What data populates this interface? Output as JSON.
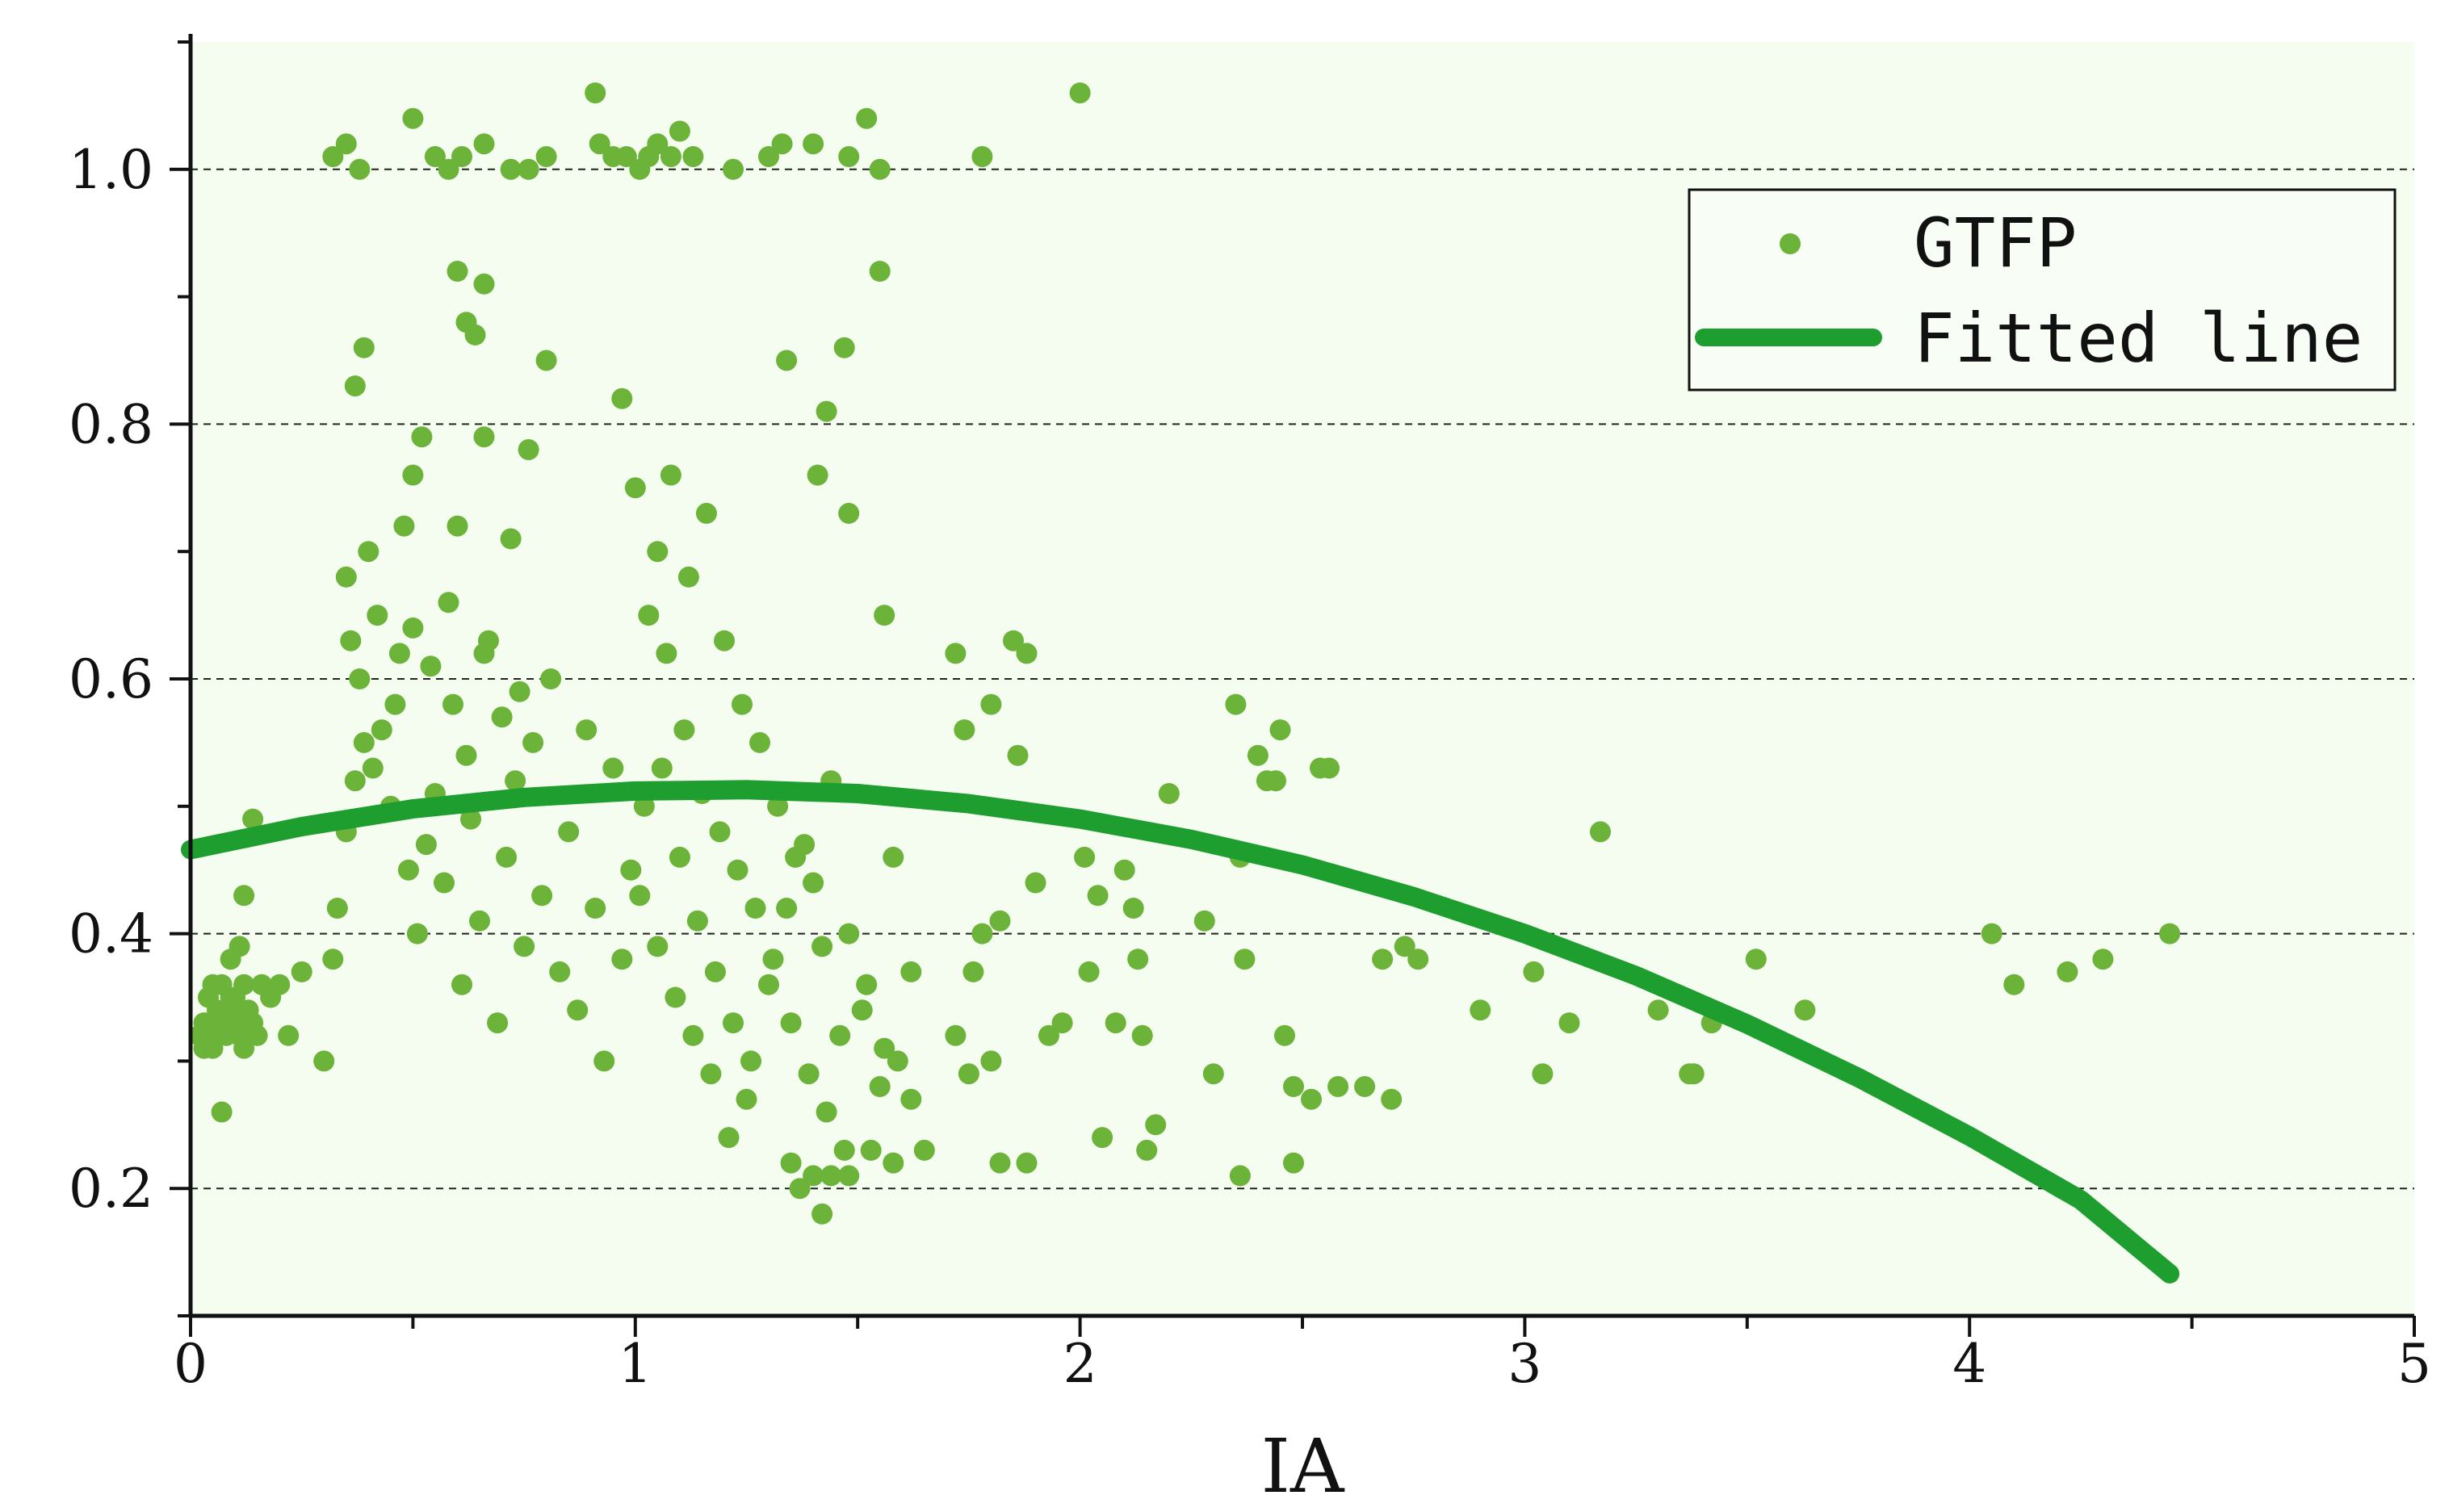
{
  "chart_data": {
    "type": "scatter",
    "xlabel": "IA",
    "ylabel": "",
    "xlim": [
      0,
      5
    ],
    "ylim": [
      0.1,
      1.1
    ],
    "x_ticks": [
      0,
      1,
      2,
      3,
      4,
      5
    ],
    "x_tick_labels": [
      "0",
      "1",
      "2",
      "3",
      "4",
      "5"
    ],
    "y_ticks": [
      0.2,
      0.4,
      0.6,
      0.8,
      1.0
    ],
    "y_tick_labels": [
      "0.2",
      "0.4",
      "0.6",
      "0.8",
      "1.0"
    ],
    "grid": "horizontal dashed",
    "legend_position": "top-right",
    "colors": {
      "points": "#6cb33a",
      "line": "#1e9e2f",
      "background": "#f5fcf0"
    },
    "series": [
      {
        "name": "GTFP",
        "kind": "scatter",
        "points": [
          [
            0.02,
            0.32
          ],
          [
            0.03,
            0.33
          ],
          [
            0.04,
            0.35
          ],
          [
            0.05,
            0.31
          ],
          [
            0.06,
            0.34
          ],
          [
            0.07,
            0.36
          ],
          [
            0.08,
            0.32
          ],
          [
            0.09,
            0.33
          ],
          [
            0.1,
            0.35
          ],
          [
            0.11,
            0.34
          ],
          [
            0.12,
            0.31
          ],
          [
            0.04,
            0.33
          ],
          [
            0.06,
            0.32
          ],
          [
            0.08,
            0.34
          ],
          [
            0.1,
            0.33
          ],
          [
            0.12,
            0.36
          ],
          [
            0.03,
            0.31
          ],
          [
            0.05,
            0.36
          ],
          [
            0.07,
            0.33
          ],
          [
            0.09,
            0.35
          ],
          [
            0.11,
            0.32
          ],
          [
            0.13,
            0.34
          ],
          [
            0.14,
            0.33
          ],
          [
            0.15,
            0.32
          ],
          [
            0.16,
            0.36
          ],
          [
            0.18,
            0.35
          ],
          [
            0.2,
            0.36
          ],
          [
            0.22,
            0.32
          ],
          [
            0.25,
            0.37
          ],
          [
            0.07,
            0.26
          ],
          [
            0.12,
            0.43
          ],
          [
            0.14,
            0.49
          ],
          [
            0.09,
            0.38
          ],
          [
            0.11,
            0.39
          ],
          [
            0.3,
            0.3
          ],
          [
            0.32,
            0.38
          ],
          [
            0.33,
            0.42
          ],
          [
            0.35,
            0.48
          ],
          [
            0.37,
            0.52
          ],
          [
            0.39,
            0.55
          ],
          [
            0.41,
            0.53
          ],
          [
            0.43,
            0.56
          ],
          [
            0.45,
            0.5
          ],
          [
            0.47,
            0.62
          ],
          [
            0.49,
            0.45
          ],
          [
            0.51,
            0.4
          ],
          [
            0.53,
            0.47
          ],
          [
            0.55,
            0.51
          ],
          [
            0.57,
            0.44
          ],
          [
            0.59,
            0.58
          ],
          [
            0.61,
            0.36
          ],
          [
            0.63,
            0.49
          ],
          [
            0.65,
            0.41
          ],
          [
            0.67,
            0.63
          ],
          [
            0.69,
            0.33
          ],
          [
            0.71,
            0.46
          ],
          [
            0.73,
            0.52
          ],
          [
            0.75,
            0.39
          ],
          [
            0.77,
            0.55
          ],
          [
            0.79,
            0.43
          ],
          [
            0.81,
            0.6
          ],
          [
            0.83,
            0.37
          ],
          [
            0.85,
            0.48
          ],
          [
            0.87,
            0.34
          ],
          [
            0.89,
            0.56
          ],
          [
            0.91,
            0.42
          ],
          [
            0.93,
            0.3
          ],
          [
            0.95,
            0.53
          ],
          [
            0.97,
            0.38
          ],
          [
            0.99,
            0.45
          ],
          [
            0.36,
            0.63
          ],
          [
            0.38,
            0.6
          ],
          [
            0.42,
            0.65
          ],
          [
            0.46,
            0.58
          ],
          [
            0.5,
            0.64
          ],
          [
            0.54,
            0.61
          ],
          [
            0.58,
            0.66
          ],
          [
            0.62,
            0.54
          ],
          [
            0.66,
            0.62
          ],
          [
            0.7,
            0.57
          ],
          [
            0.74,
            0.59
          ],
          [
            0.35,
            0.68
          ],
          [
            0.4,
            0.7
          ],
          [
            0.5,
            0.76
          ],
          [
            0.52,
            0.79
          ],
          [
            0.48,
            0.72
          ],
          [
            0.6,
            0.72
          ],
          [
            0.66,
            0.79
          ],
          [
            0.72,
            0.71
          ],
          [
            0.76,
            0.78
          ],
          [
            0.8,
            0.85
          ],
          [
            0.37,
            0.83
          ],
          [
            0.39,
            0.86
          ],
          [
            0.32,
            1.01
          ],
          [
            0.35,
            1.02
          ],
          [
            0.38,
            1.0
          ],
          [
            0.5,
            1.04
          ],
          [
            0.55,
            1.01
          ],
          [
            0.58,
            1.0
          ],
          [
            0.61,
            1.01
          ],
          [
            0.66,
            1.02
          ],
          [
            0.72,
            1.0
          ],
          [
            0.76,
            1.0
          ],
          [
            0.8,
            1.01
          ],
          [
            0.91,
            1.06
          ],
          [
            0.92,
            1.02
          ],
          [
            0.95,
            1.01
          ],
          [
            0.98,
            1.01
          ],
          [
            1.01,
            1.0
          ],
          [
            1.03,
            1.01
          ],
          [
            1.05,
            1.02
          ],
          [
            1.08,
            1.01
          ],
          [
            1.1,
            1.03
          ],
          [
            1.13,
            1.01
          ],
          [
            1.22,
            1.0
          ],
          [
            1.3,
            1.01
          ],
          [
            1.33,
            1.02
          ],
          [
            1.4,
            1.02
          ],
          [
            1.48,
            1.01
          ],
          [
            1.52,
            1.04
          ],
          [
            1.55,
            1.0
          ],
          [
            1.78,
            1.01
          ],
          [
            2.0,
            1.06
          ],
          [
            0.6,
            0.92
          ],
          [
            0.66,
            0.91
          ],
          [
            0.62,
            0.88
          ],
          [
            0.64,
            0.87
          ],
          [
            0.97,
            0.82
          ],
          [
            1.43,
            0.81
          ],
          [
            1.47,
            0.86
          ],
          [
            1.34,
            0.85
          ],
          [
            1.55,
            0.92
          ],
          [
            1.0,
            0.75
          ],
          [
            1.05,
            0.7
          ],
          [
            1.08,
            0.76
          ],
          [
            1.12,
            0.68
          ],
          [
            1.16,
            0.73
          ],
          [
            1.2,
            0.63
          ],
          [
            1.24,
            0.58
          ],
          [
            1.28,
            0.55
          ],
          [
            1.32,
            0.5
          ],
          [
            1.36,
            0.46
          ],
          [
            1.4,
            0.44
          ],
          [
            1.44,
            0.52
          ],
          [
            1.48,
            0.4
          ],
          [
            1.52,
            0.36
          ],
          [
            1.56,
            0.31
          ],
          [
            1.03,
            0.65
          ],
          [
            1.07,
            0.62
          ],
          [
            1.11,
            0.56
          ],
          [
            1.15,
            0.51
          ],
          [
            1.19,
            0.48
          ],
          [
            1.23,
            0.45
          ],
          [
            1.27,
            0.42
          ],
          [
            1.31,
            0.38
          ],
          [
            1.35,
            0.33
          ],
          [
            1.39,
            0.29
          ],
          [
            1.43,
            0.26
          ],
          [
            1.47,
            0.23
          ],
          [
            1.51,
            0.34
          ],
          [
            1.55,
            0.28
          ],
          [
            1.59,
            0.3
          ],
          [
            1.01,
            0.43
          ],
          [
            1.05,
            0.39
          ],
          [
            1.09,
            0.35
          ],
          [
            1.13,
            0.32
          ],
          [
            1.17,
            0.29
          ],
          [
            1.21,
            0.24
          ],
          [
            1.25,
            0.27
          ],
          [
            1.02,
            0.5
          ],
          [
            1.06,
            0.53
          ],
          [
            1.1,
            0.46
          ],
          [
            1.14,
            0.41
          ],
          [
            1.18,
            0.37
          ],
          [
            1.22,
            0.33
          ],
          [
            1.26,
            0.3
          ],
          [
            1.3,
            0.36
          ],
          [
            1.34,
            0.42
          ],
          [
            1.38,
            0.47
          ],
          [
            1.42,
            0.39
          ],
          [
            1.46,
            0.32
          ],
          [
            1.35,
            0.22
          ],
          [
            1.37,
            0.2
          ],
          [
            1.4,
            0.21
          ],
          [
            1.42,
            0.18
          ],
          [
            1.44,
            0.21
          ],
          [
            1.48,
            0.21
          ],
          [
            1.53,
            0.23
          ],
          [
            1.58,
            0.22
          ],
          [
            1.62,
            0.27
          ],
          [
            1.65,
            0.23
          ],
          [
            1.41,
            0.76
          ],
          [
            1.48,
            0.73
          ],
          [
            1.56,
            0.65
          ],
          [
            1.58,
            0.46
          ],
          [
            1.62,
            0.37
          ],
          [
            1.72,
            0.62
          ],
          [
            1.74,
            0.56
          ],
          [
            1.76,
            0.37
          ],
          [
            1.78,
            0.4
          ],
          [
            1.8,
            0.58
          ],
          [
            1.82,
            0.41
          ],
          [
            1.85,
            0.63
          ],
          [
            1.86,
            0.54
          ],
          [
            1.88,
            0.62
          ],
          [
            1.72,
            0.32
          ],
          [
            1.75,
            0.29
          ],
          [
            1.8,
            0.3
          ],
          [
            1.82,
            0.22
          ],
          [
            1.88,
            0.22
          ],
          [
            1.9,
            0.44
          ],
          [
            1.93,
            0.32
          ],
          [
            1.96,
            0.33
          ],
          [
            2.01,
            0.46
          ],
          [
            2.02,
            0.37
          ],
          [
            2.04,
            0.43
          ],
          [
            2.05,
            0.24
          ],
          [
            2.08,
            0.33
          ],
          [
            2.1,
            0.45
          ],
          [
            2.12,
            0.42
          ],
          [
            2.13,
            0.38
          ],
          [
            2.14,
            0.32
          ],
          [
            2.15,
            0.23
          ],
          [
            2.17,
            0.25
          ],
          [
            2.2,
            0.51
          ],
          [
            2.28,
            0.41
          ],
          [
            2.3,
            0.29
          ],
          [
            2.35,
            0.58
          ],
          [
            2.36,
            0.46
          ],
          [
            2.37,
            0.38
          ],
          [
            2.36,
            0.21
          ],
          [
            2.4,
            0.54
          ],
          [
            2.42,
            0.52
          ],
          [
            2.44,
            0.52
          ],
          [
            2.45,
            0.56
          ],
          [
            2.46,
            0.32
          ],
          [
            2.48,
            0.28
          ],
          [
            2.48,
            0.22
          ],
          [
            2.52,
            0.27
          ],
          [
            2.54,
            0.53
          ],
          [
            2.56,
            0.53
          ],
          [
            2.58,
            0.28
          ],
          [
            2.64,
            0.28
          ],
          [
            2.68,
            0.38
          ],
          [
            2.7,
            0.27
          ],
          [
            2.73,
            0.39
          ],
          [
            2.76,
            0.38
          ],
          [
            2.9,
            0.34
          ],
          [
            3.02,
            0.37
          ],
          [
            3.04,
            0.29
          ],
          [
            3.1,
            0.33
          ],
          [
            3.17,
            0.48
          ],
          [
            3.3,
            0.34
          ],
          [
            3.37,
            0.29
          ],
          [
            3.38,
            0.29
          ],
          [
            3.42,
            0.33
          ],
          [
            3.52,
            0.38
          ],
          [
            3.63,
            0.34
          ],
          [
            4.05,
            0.4
          ],
          [
            4.1,
            0.36
          ],
          [
            4.22,
            0.37
          ],
          [
            4.3,
            0.38
          ],
          [
            4.45,
            0.4
          ]
        ]
      },
      {
        "name": "Fitted line",
        "kind": "line",
        "x": [
          0,
          0.25,
          0.5,
          0.75,
          1.0,
          1.25,
          1.5,
          1.75,
          2.0,
          2.25,
          2.5,
          2.75,
          3.0,
          3.25,
          3.5,
          3.75,
          4.0,
          4.25,
          4.45
        ],
        "values": [
          0.466,
          0.484,
          0.498,
          0.507,
          0.512,
          0.513,
          0.51,
          0.502,
          0.49,
          0.474,
          0.454,
          0.429,
          0.4,
          0.367,
          0.329,
          0.287,
          0.241,
          0.191,
          0.133
        ]
      }
    ]
  }
}
